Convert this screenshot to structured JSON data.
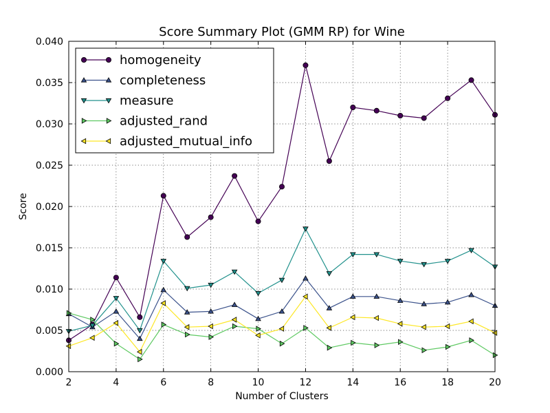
{
  "chart_data": {
    "type": "line",
    "title": "Score Summary Plot (GMM RP) for Wine",
    "xlabel": "Number of Clusters",
    "ylabel": "Score",
    "xlim": [
      2,
      20
    ],
    "ylim": [
      0,
      0.04
    ],
    "xticks": [
      "2",
      "4",
      "6",
      "8",
      "10",
      "12",
      "14",
      "16",
      "18",
      "20"
    ],
    "yticks": [
      "0.000",
      "0.005",
      "0.010",
      "0.015",
      "0.020",
      "0.025",
      "0.030",
      "0.035",
      "0.040"
    ],
    "grid": true,
    "legend_position": "top-left",
    "x": [
      2,
      3,
      4,
      5,
      6,
      7,
      8,
      9,
      10,
      11,
      12,
      13,
      14,
      15,
      16,
      17,
      18,
      19,
      20
    ],
    "series": [
      {
        "name": "homogeneity",
        "color": "#440154",
        "marker": "circle",
        "values": [
          0.0038,
          0.0057,
          0.0114,
          0.0066,
          0.0213,
          0.0163,
          0.0187,
          0.0237,
          0.0182,
          0.0224,
          0.0371,
          0.0255,
          0.032,
          0.0316,
          0.031,
          0.0307,
          0.0331,
          0.0353,
          0.0311
        ]
      },
      {
        "name": "completeness",
        "color": "#3b528b",
        "marker": "triangle-up",
        "values": [
          0.007,
          0.0054,
          0.0073,
          0.004,
          0.0099,
          0.0072,
          0.0073,
          0.0081,
          0.0064,
          0.0073,
          0.0113,
          0.0077,
          0.0091,
          0.0091,
          0.0086,
          0.0082,
          0.0084,
          0.0093,
          0.008
        ]
      },
      {
        "name": "measure",
        "color": "#21918c",
        "marker": "triangle-down",
        "values": [
          0.0049,
          0.0056,
          0.0089,
          0.005,
          0.0134,
          0.0101,
          0.0105,
          0.0121,
          0.0095,
          0.0111,
          0.0173,
          0.0119,
          0.0142,
          0.0142,
          0.0134,
          0.013,
          0.0134,
          0.0147,
          0.0127
        ]
      },
      {
        "name": "adjusted_rand",
        "color": "#5ec962",
        "marker": "triangle-right",
        "values": [
          0.0071,
          0.0063,
          0.0034,
          0.0015,
          0.0057,
          0.0045,
          0.0042,
          0.0055,
          0.0052,
          0.0034,
          0.0053,
          0.0029,
          0.0035,
          0.0032,
          0.0036,
          0.0026,
          0.003,
          0.0038,
          0.002
        ]
      },
      {
        "name": "adjusted_mutual_info",
        "color": "#fde725",
        "marker": "triangle-left",
        "values": [
          0.0031,
          0.0041,
          0.0059,
          0.0024,
          0.0083,
          0.0054,
          0.0055,
          0.0063,
          0.0044,
          0.0052,
          0.0091,
          0.0053,
          0.0066,
          0.0065,
          0.0058,
          0.0054,
          0.0055,
          0.0061,
          0.0047
        ]
      }
    ]
  }
}
